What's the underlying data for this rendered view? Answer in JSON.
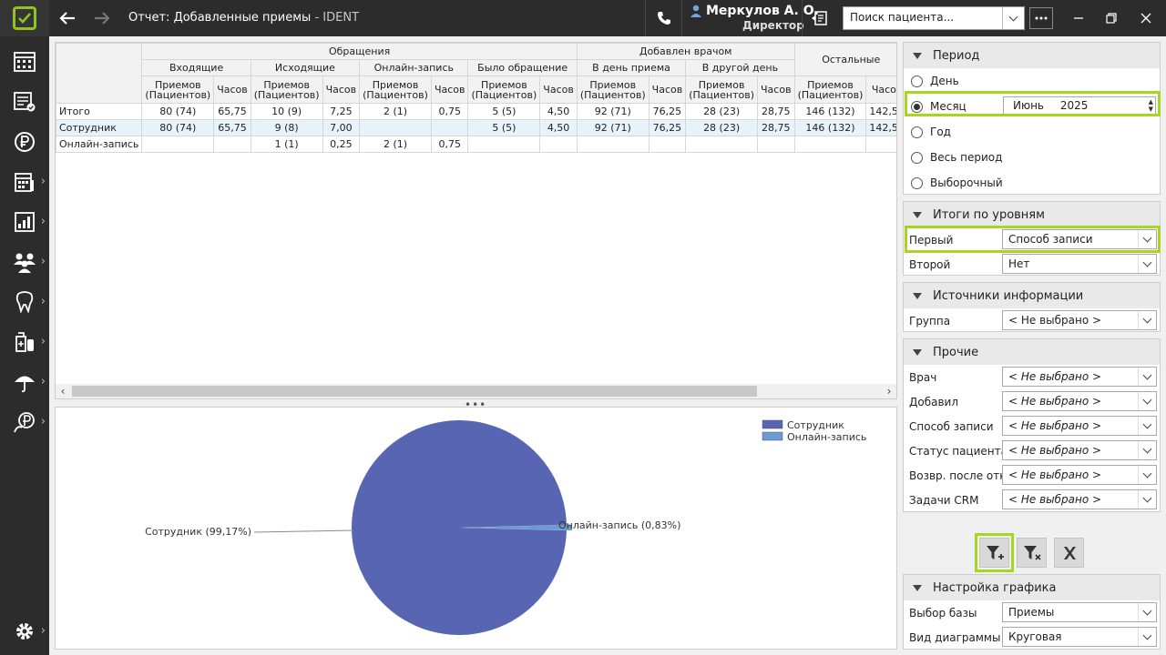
{
  "window": {
    "title": "Отчет: Добавленные приемы",
    "app_name": "IDENT",
    "user_name": "Меркулов А. О.",
    "user_role": "Директор"
  },
  "search": {
    "placeholder": "Поиск пациента..."
  },
  "accent_color": "#a6d620",
  "sidebar": {
    "items": [
      {
        "icon": "schedule-grid-icon"
      },
      {
        "icon": "tasks-list-icon"
      },
      {
        "icon": "ruble-icon"
      },
      {
        "icon": "calendar-icon"
      },
      {
        "icon": "reports-chart-icon"
      },
      {
        "icon": "people-icon"
      },
      {
        "icon": "tooth-icon"
      },
      {
        "icon": "medicine-icon"
      },
      {
        "icon": "umbrella-icon"
      },
      {
        "icon": "ruble-person-icon"
      },
      {
        "icon": "settings-gear-icon"
      }
    ]
  },
  "table": {
    "group_headers": [
      {
        "label": "Обращения"
      },
      {
        "label": "Добавлен врачом"
      },
      {
        "label": "Остальные"
      }
    ],
    "sub_headers": [
      {
        "label": "Входящие"
      },
      {
        "label": "Исходящие"
      },
      {
        "label": "Онлайн-запись"
      },
      {
        "label": "Было обращение"
      },
      {
        "label": "В день приема"
      },
      {
        "label": "В другой день"
      }
    ],
    "col_label_a1": "Приемов",
    "col_label_a2": "(Пациентов)",
    "col_label_b": "Часов",
    "rows": [
      {
        "name": "Итого",
        "cells": [
          "80 (74)",
          "65,75",
          "10 (9)",
          "7,25",
          "2 (1)",
          "0,75",
          "5 (5)",
          "4,50",
          "92 (71)",
          "76,25",
          "28 (23)",
          "28,75",
          "146 (132)",
          "142,50"
        ]
      },
      {
        "name": "Сотрудник",
        "cells": [
          "80 (74)",
          "65,75",
          "9 (8)",
          "7,00",
          "",
          "",
          "5 (5)",
          "4,50",
          "92 (71)",
          "76,25",
          "28 (23)",
          "28,75",
          "146 (132)",
          "142,50"
        ]
      },
      {
        "name": "Онлайн-запись",
        "cells": [
          "",
          "",
          "1 (1)",
          "0,25",
          "2 (1)",
          "0,75",
          "",
          "",
          "",
          "",
          "",
          "",
          "",
          ""
        ]
      }
    ]
  },
  "chart_data": {
    "type": "pie",
    "categories": [
      "Сотрудник",
      "Онлайн-запись"
    ],
    "values": [
      99.17,
      0.83
    ],
    "labels": [
      "Сотрудник (99,17%)",
      "Онлайн-запись (0,83%)"
    ],
    "colors": [
      "#5865b3",
      "#6b9bd2"
    ],
    "legend": "top-right"
  },
  "period": {
    "title": "Период",
    "options": [
      "День",
      "Месяц",
      "Год",
      "Весь период",
      "Выборочный"
    ],
    "selected": "Месяц",
    "month": "Июнь",
    "year": "2025"
  },
  "levels": {
    "title": "Итоги по уровням",
    "first_label": "Первый",
    "first_value": "Способ записи",
    "second_label": "Второй",
    "second_value": "Нет"
  },
  "sources": {
    "title": "Источники информации",
    "group_label": "Группа",
    "group_value": "< Не выбрано >"
  },
  "other": {
    "title": "Прочие",
    "filters": [
      {
        "label": "Врач",
        "value": "< Не выбрано >"
      },
      {
        "label": "Добавил",
        "value": "< Не выбрано >"
      },
      {
        "label": "Способ записи",
        "value": "< Не выбрано >"
      },
      {
        "label": "Статус пациента",
        "value": "< Не выбрано >"
      },
      {
        "label": "Возвр. после отк.",
        "value": "< Не выбрано >"
      },
      {
        "label": "Задачи CRM",
        "value": "< Не выбрано >"
      }
    ]
  },
  "chart_settings": {
    "title": "Настройка графика",
    "base_label": "Выбор базы",
    "base_value": "Приемы",
    "type_label": "Вид диаграммы",
    "type_value": "Круговая"
  }
}
